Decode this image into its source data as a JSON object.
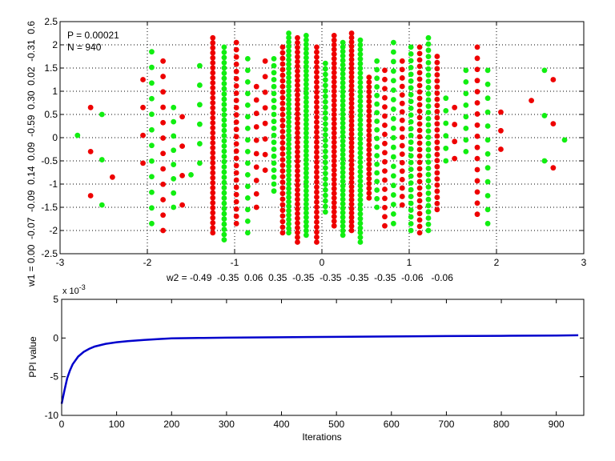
{
  "chart_data": [
    {
      "type": "scatter",
      "xlim": [
        -3,
        3
      ],
      "ylim": [
        -2.5,
        2.5
      ],
      "xticks": [
        "-3",
        "-2",
        "-1",
        "0",
        "1",
        "2",
        "3"
      ],
      "yticks": [
        "-2.5",
        "-2",
        "-1.5",
        "-1",
        "-0.5",
        "0",
        "0.5",
        "1",
        "1.5",
        "2",
        "2.5"
      ],
      "grid": true,
      "annotations": [
        "P = 0.00021",
        "N = 940"
      ],
      "xlabel": "w2 = -0.49  -0.35  0.06  0.35  -0.35  -0.35  -0.35  -0.35  -0.06   -0.06",
      "ylabel": "w1 = 0.00  -0.07  -0.09  0.14  0.09  -0.59  0.30  0.02  -0.31  0.6",
      "colors": {
        "red": "#ee0000",
        "green": "#11ee11"
      },
      "columns": [
        {
          "x": -2.8,
          "color": "green",
          "ymin": 0.05,
          "ymax": 0.05,
          "n": 1
        },
        {
          "x": -2.65,
          "color": "red",
          "ymin": -1.25,
          "ymax": 0.65,
          "n": 3
        },
        {
          "x": -2.52,
          "color": "green",
          "ymin": -1.45,
          "ymax": 0.5,
          "n": 3
        },
        {
          "x": -2.4,
          "color": "red",
          "ymin": -0.85,
          "ymax": -0.85,
          "n": 1
        },
        {
          "x": -2.05,
          "color": "red",
          "ymin": -0.55,
          "ymax": 1.25,
          "n": 4
        },
        {
          "x": -1.95,
          "color": "green",
          "ymin": -1.85,
          "ymax": 1.85,
          "n": 12
        },
        {
          "x": -1.82,
          "color": "red",
          "ymin": -2.0,
          "ymax": 1.65,
          "n": 12
        },
        {
          "x": -1.7,
          "color": "green",
          "ymin": -1.5,
          "ymax": 0.65,
          "n": 8
        },
        {
          "x": -1.6,
          "color": "red",
          "ymin": -1.45,
          "ymax": 0.45,
          "n": 4
        },
        {
          "x": -1.5,
          "color": "green",
          "ymin": -0.8,
          "ymax": -0.8,
          "n": 1
        },
        {
          "x": -1.4,
          "color": "green",
          "ymin": -0.55,
          "ymax": 1.55,
          "n": 6
        },
        {
          "x": -1.25,
          "color": "red",
          "ymin": -2.05,
          "ymax": 2.15,
          "n": 40
        },
        {
          "x": -1.12,
          "color": "green",
          "ymin": -2.2,
          "ymax": 1.95,
          "n": 38
        },
        {
          "x": -0.98,
          "color": "red",
          "ymin": -1.85,
          "ymax": 2.05,
          "n": 26
        },
        {
          "x": -0.85,
          "color": "green",
          "ymin": -2.05,
          "ymax": 1.7,
          "n": 16
        },
        {
          "x": -0.75,
          "color": "red",
          "ymin": -1.5,
          "ymax": 1.1,
          "n": 10
        },
        {
          "x": -0.65,
          "color": "red",
          "ymin": -0.7,
          "ymax": 1.65,
          "n": 8
        },
        {
          "x": -0.55,
          "color": "green",
          "ymin": -1.15,
          "ymax": 1.7,
          "n": 20
        },
        {
          "x": -0.45,
          "color": "red",
          "ymin": -2.05,
          "ymax": 1.95,
          "n": 34
        },
        {
          "x": -0.38,
          "color": "green",
          "ymin": -2.05,
          "ymax": 2.25,
          "n": 46
        },
        {
          "x": -0.28,
          "color": "red",
          "ymin": -2.25,
          "ymax": 2.15,
          "n": 44
        },
        {
          "x": -0.18,
          "color": "green",
          "ymin": -2.1,
          "ymax": 2.2,
          "n": 46
        },
        {
          "x": -0.06,
          "color": "red",
          "ymin": -2.25,
          "ymax": 1.95,
          "n": 40
        },
        {
          "x": 0.04,
          "color": "green",
          "ymin": -1.6,
          "ymax": 1.6,
          "n": 28
        },
        {
          "x": 0.14,
          "color": "red",
          "ymin": -1.9,
          "ymax": 2.2,
          "n": 42
        },
        {
          "x": 0.24,
          "color": "green",
          "ymin": -2.1,
          "ymax": 2.05,
          "n": 44
        },
        {
          "x": 0.34,
          "color": "red",
          "ymin": -2.0,
          "ymax": 2.25,
          "n": 46
        },
        {
          "x": 0.44,
          "color": "green",
          "ymin": -2.25,
          "ymax": 2.1,
          "n": 44
        },
        {
          "x": 0.54,
          "color": "red",
          "ymin": -1.3,
          "ymax": 1.3,
          "n": 26
        },
        {
          "x": 0.63,
          "color": "green",
          "ymin": -1.5,
          "ymax": 1.65,
          "n": 18
        },
        {
          "x": 0.72,
          "color": "red",
          "ymin": -1.9,
          "ymax": 1.45,
          "n": 18
        },
        {
          "x": 0.82,
          "color": "green",
          "ymin": -1.85,
          "ymax": 2.05,
          "n": 20
        },
        {
          "x": 0.92,
          "color": "red",
          "ymin": -1.45,
          "ymax": 1.65,
          "n": 18
        },
        {
          "x": 1.02,
          "color": "green",
          "ymin": -2.0,
          "ymax": 1.95,
          "n": 28
        },
        {
          "x": 1.12,
          "color": "red",
          "ymin": -2.05,
          "ymax": 1.95,
          "n": 30
        },
        {
          "x": 1.22,
          "color": "green",
          "ymin": -2.0,
          "ymax": 2.15,
          "n": 32
        },
        {
          "x": 1.32,
          "color": "red",
          "ymin": -1.55,
          "ymax": 1.75,
          "n": 26
        },
        {
          "x": 1.42,
          "color": "green",
          "ymin": -0.5,
          "ymax": 0.85,
          "n": 6
        },
        {
          "x": 1.52,
          "color": "red",
          "ymin": -0.45,
          "ymax": 0.65,
          "n": 4
        },
        {
          "x": 1.65,
          "color": "green",
          "ymin": -0.3,
          "ymax": 1.45,
          "n": 8
        },
        {
          "x": 1.78,
          "color": "red",
          "ymin": -1.65,
          "ymax": 1.95,
          "n": 16
        },
        {
          "x": 1.9,
          "color": "green",
          "ymin": -1.85,
          "ymax": 1.45,
          "n": 12
        },
        {
          "x": 2.05,
          "color": "red",
          "ymin": -0.25,
          "ymax": 0.55,
          "n": 3
        },
        {
          "x": 2.4,
          "color": "red",
          "ymin": 0.8,
          "ymax": 0.8,
          "n": 1
        },
        {
          "x": 2.55,
          "color": "green",
          "ymin": -0.5,
          "ymax": 1.45,
          "n": 3
        },
        {
          "x": 2.65,
          "color": "red",
          "ymin": -0.65,
          "ymax": 1.25,
          "n": 3
        },
        {
          "x": 2.78,
          "color": "green",
          "ymin": -0.05,
          "ymax": -0.05,
          "n": 1
        }
      ]
    },
    {
      "type": "line",
      "xlim": [
        0,
        950
      ],
      "ylim": [
        -10,
        5
      ],
      "xticks": [
        "0",
        "100",
        "200",
        "300",
        "400",
        "500",
        "600",
        "700",
        "800",
        "900"
      ],
      "yticks": [
        "-10",
        "-5",
        "0",
        "5"
      ],
      "y_scale_label": "x 10",
      "y_scale_exponent": "-3",
      "xlabel": "Iterations",
      "ylabel": "PPI value",
      "grid": false,
      "line_color": "#0000cc",
      "series": [
        {
          "x": [
            0,
            5,
            10,
            15,
            20,
            30,
            40,
            50,
            60,
            80,
            100,
            120,
            150,
            180,
            200,
            250,
            300,
            400,
            500,
            600,
            700,
            800,
            900,
            940
          ],
          "values": [
            -8.5,
            -6.8,
            -5.2,
            -4.2,
            -3.4,
            -2.4,
            -1.8,
            -1.4,
            -1.1,
            -0.75,
            -0.55,
            -0.4,
            -0.25,
            -0.12,
            -0.05,
            0.0,
            0.05,
            0.1,
            0.15,
            0.2,
            0.25,
            0.28,
            0.32,
            0.35
          ]
        }
      ]
    }
  ]
}
